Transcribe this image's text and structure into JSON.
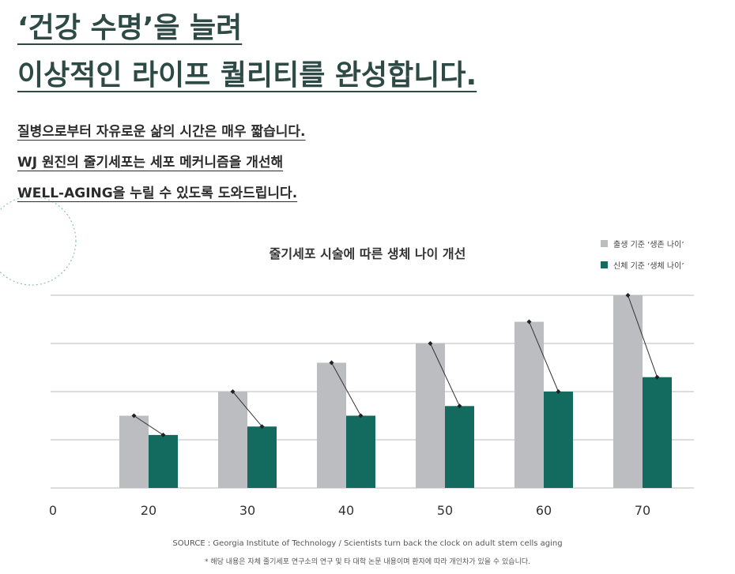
{
  "headline": {
    "line1": "‘건강 수명’을 늘려",
    "line2": "이상적인 라이프 퀄리티를 완성합니다."
  },
  "subtext": {
    "line1": "질병으로부터 자유로운 삶의 시간은 매우 짧습니다.",
    "line2": "WJ 원진의 줄기세포는 세포 메커니즘을 개선해",
    "line3": "WELL-AGING을 누릴 수 있도록 도와드립니다."
  },
  "colors": {
    "text_dark": "#2e4a44",
    "bar_gray": "#bcbdc1",
    "bar_green": "#136a5e",
    "grid": "#b8b8b8",
    "line": "#333333"
  },
  "chart_data": {
    "type": "bar",
    "title": "줄기세포 시술에 따른 생체 나이 개선",
    "origin_label": "0",
    "categories": [
      "20",
      "30",
      "40",
      "50",
      "60",
      "70"
    ],
    "series": [
      {
        "name": "출생 기준 ‘생존 나이’",
        "color": "#bcbdc1",
        "values": [
          15,
          20,
          26,
          30,
          34.5,
          40
        ]
      },
      {
        "name": "신체 기준 ‘생체 나이’",
        "color": "#136a5e",
        "values": [
          11,
          12.75,
          15,
          17,
          20,
          23
        ]
      }
    ],
    "ylim": [
      0,
      40
    ],
    "gridlines": [
      10,
      20,
      30,
      40
    ],
    "connector_lines": true,
    "legend_position": "top-right"
  },
  "source": "SOURCE : Georgia Institute of Technology / Scientists turn back the clock on adult stem cells aging",
  "note": "* 해당 내용은 자체 줄기세포 연구소의 연구 및 타 대학 논문 내용이며 환자에 따라 개인차가 있을 수 있습니다."
}
